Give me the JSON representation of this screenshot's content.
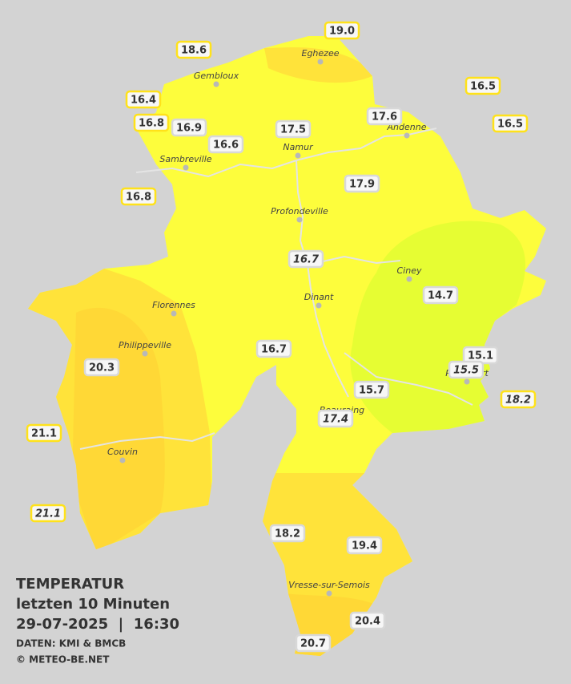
{
  "map": {
    "background": "#d3d3d3",
    "region_color": "#fdfd3c",
    "cities": [
      "Eghezee",
      "Gembloux",
      "Andenne",
      "Namur",
      "Sambreville",
      "Profondeville",
      "Ciney",
      "Dinant",
      "Florennes",
      "Philippeville",
      "Rochefort",
      "Beauraing",
      "Couvin",
      "Vresse-sur-Semois"
    ],
    "readings": [
      {
        "text": "19.0",
        "border": "#ffe21a",
        "italic": false
      },
      {
        "text": "18.6",
        "border": "#ffe21a",
        "italic": false
      },
      {
        "text": "16.5",
        "border": "#ffe21a",
        "italic": false
      },
      {
        "text": "16.4",
        "border": "#ffe21a",
        "italic": false
      },
      {
        "text": "17.6",
        "border": "#d8d8d8",
        "italic": false
      },
      {
        "text": "16.8",
        "border": "#ffe21a",
        "italic": false
      },
      {
        "text": "16.9",
        "border": "#d8d8d8",
        "italic": false
      },
      {
        "text": "17.5",
        "border": "#d8d8d8",
        "italic": false
      },
      {
        "text": "16.5",
        "border": "#ffe21a",
        "italic": false
      },
      {
        "text": "16.6",
        "border": "#d8d8d8",
        "italic": false
      },
      {
        "text": "16.8",
        "border": "#ffe21a",
        "italic": false
      },
      {
        "text": "17.9",
        "border": "#d8d8d8",
        "italic": false
      },
      {
        "text": "16.7",
        "border": "#d8d8d8",
        "italic": true
      },
      {
        "text": "14.7",
        "border": "#d8d8d8",
        "italic": false
      },
      {
        "text": "16.7",
        "border": "#d8d8d8",
        "italic": false
      },
      {
        "text": "15.1",
        "border": "#d8d8d8",
        "italic": false
      },
      {
        "text": "20.3",
        "border": "#d8d8d8",
        "italic": false
      },
      {
        "text": "15.5",
        "border": "#d8d8d8",
        "italic": true
      },
      {
        "text": "15.7",
        "border": "#d8d8d8",
        "italic": false
      },
      {
        "text": "18.2",
        "border": "#ffe21a",
        "italic": true
      },
      {
        "text": "17.4",
        "border": "#d8d8d8",
        "italic": true
      },
      {
        "text": "21.1",
        "border": "#ffe21a",
        "italic": false
      },
      {
        "text": "21.1",
        "border": "#ffe21a",
        "italic": true
      },
      {
        "text": "18.2",
        "border": "#d8d8d8",
        "italic": false
      },
      {
        "text": "19.4",
        "border": "#d8d8d8",
        "italic": false
      },
      {
        "text": "20.4",
        "border": "#d8d8d8",
        "italic": false
      },
      {
        "text": "20.7",
        "border": "#d8d8d8",
        "italic": false
      }
    ]
  },
  "legend": {
    "title": "TEMPERATUR",
    "subtitle": "letzten 10 Minuten",
    "datetime": "29-07-2025  |  16:30",
    "source": "DATEN: KMI & BMCB",
    "copyright": "© METEO-BE.NET"
  }
}
